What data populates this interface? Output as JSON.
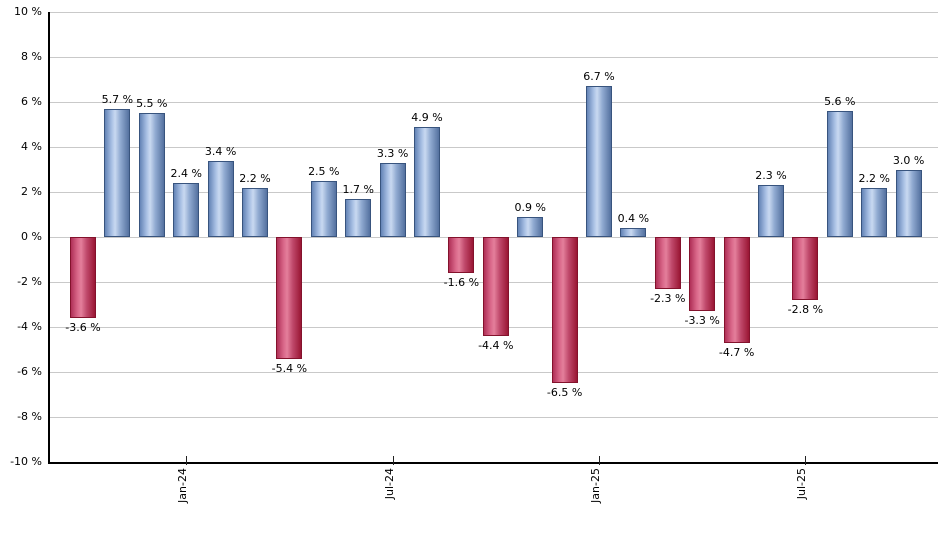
{
  "chart_data": {
    "type": "bar",
    "title": "",
    "xlabel": "",
    "ylabel": "",
    "unit": "%",
    "ylim": [
      -10,
      10
    ],
    "y_tick_step": 2,
    "grid": true,
    "legend": false,
    "values": [
      -3.6,
      5.7,
      5.5,
      2.4,
      3.4,
      2.2,
      -5.4,
      2.5,
      1.7,
      3.3,
      4.9,
      -1.6,
      -4.4,
      0.9,
      -6.5,
      6.7,
      0.4,
      -2.3,
      -3.3,
      -4.7,
      2.3,
      -2.8,
      5.6,
      2.2,
      3.0
    ],
    "bar_labels": [
      "-3.6 %",
      "5.7 %",
      "5.5 %",
      "2.4 %",
      "3.4 %",
      "2.2 %",
      "-5.4 %",
      "2.5 %",
      "1.7 %",
      "3.3 %",
      "4.9 %",
      "-1.6 %",
      "-4.4 %",
      "0.9 %",
      "-6.5 %",
      "6.7 %",
      "0.4 %",
      "-2.3 %",
      "-3.3 %",
      "-4.7 %",
      "2.3 %",
      "-2.8 %",
      "5.6 %",
      "2.2 %",
      "3.0 %"
    ],
    "x_ticks": [
      {
        "bar_index": 3,
        "label": "Jan-24"
      },
      {
        "bar_index": 9,
        "label": "Jul-24"
      },
      {
        "bar_index": 15,
        "label": "Jan-25"
      },
      {
        "bar_index": 21,
        "label": "Jul-25"
      }
    ],
    "y_ticks": [
      {
        "value": 10,
        "label": "10 %"
      },
      {
        "value": 8,
        "label": "8 %"
      },
      {
        "value": 6,
        "label": "6 %"
      },
      {
        "value": 4,
        "label": "4 %"
      },
      {
        "value": 2,
        "label": "2 %"
      },
      {
        "value": 0,
        "label": "0 %"
      },
      {
        "value": -2,
        "label": "-2 %"
      },
      {
        "value": -4,
        "label": "-4 %"
      },
      {
        "value": -6,
        "label": "-6 %"
      },
      {
        "value": -8,
        "label": "-8 %"
      },
      {
        "value": -10,
        "label": "-10 %"
      }
    ],
    "colors": {
      "positive_fill_light": "#c9d9f1",
      "positive_fill_dark": "#54719f",
      "positive_border": "#38547e",
      "negative_fill_light": "#e47f9b",
      "negative_fill_dark": "#9a1634",
      "negative_border": "#83122c",
      "gridline": "#c9c9c9",
      "axis": "#000000",
      "label_text": "#000000",
      "background": "#ffffff"
    }
  }
}
